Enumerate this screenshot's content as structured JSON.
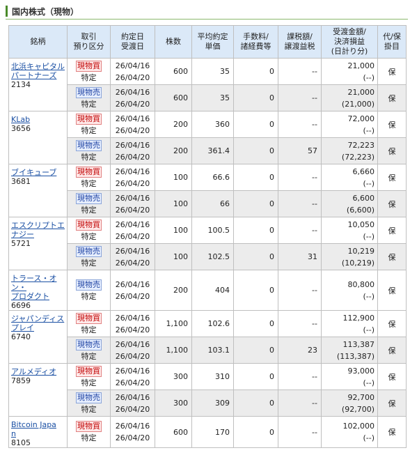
{
  "section_title": "国内株式（現物）",
  "headers": {
    "brand": "銘柄",
    "type": [
      "取引",
      "預り区分"
    ],
    "dates": [
      "約定日",
      "受渡日"
    ],
    "qty": "株数",
    "price": [
      "平均約定",
      "単価"
    ],
    "fee": [
      "手数料/",
      "諸経費等"
    ],
    "tax": [
      "課税額/",
      "譲渡益税"
    ],
    "amount": [
      "受渡金額/",
      "決済損益",
      "(日計り分)"
    ],
    "proxy": [
      "代/保",
      "掛目"
    ]
  },
  "groups": [
    {
      "name": "北浜キャピタルパートナーズ",
      "name_lines": [
        "北浜キャピタル",
        "パートナーズ"
      ],
      "code": "2134",
      "rows": [
        {
          "type": "現物買",
          "acct": "特定",
          "trade_date": "26/04/16",
          "settle_date": "26/04/20",
          "qty": "600",
          "price": "35",
          "fee": "0",
          "tax": "--",
          "amount": "21,000",
          "pl": "(--)",
          "proxy": "保"
        },
        {
          "type": "現物売",
          "acct": "特定",
          "trade_date": "26/04/16",
          "settle_date": "26/04/20",
          "qty": "600",
          "price": "35",
          "fee": "0",
          "tax": "--",
          "amount": "21,000",
          "pl": "(21,000)",
          "proxy": "保"
        }
      ]
    },
    {
      "name": "KLab",
      "name_lines": [
        "KLab"
      ],
      "code": "3656",
      "rows": [
        {
          "type": "現物買",
          "acct": "特定",
          "trade_date": "26/04/16",
          "settle_date": "26/04/20",
          "qty": "200",
          "price": "360",
          "fee": "0",
          "tax": "--",
          "amount": "72,000",
          "pl": "(--)",
          "proxy": "保"
        },
        {
          "type": "現物売",
          "acct": "特定",
          "trade_date": "26/04/16",
          "settle_date": "26/04/20",
          "qty": "200",
          "price": "361.4",
          "fee": "0",
          "tax": "57",
          "amount": "72,223",
          "pl": "(72,223)",
          "proxy": "保"
        }
      ]
    },
    {
      "name": "ブイキューブ",
      "name_lines": [
        "ブイキューブ"
      ],
      "code": "3681",
      "rows": [
        {
          "type": "現物買",
          "acct": "特定",
          "trade_date": "26/04/16",
          "settle_date": "26/04/20",
          "qty": "100",
          "price": "66.6",
          "fee": "0",
          "tax": "--",
          "amount": "6,660",
          "pl": "(--)",
          "proxy": "保"
        },
        {
          "type": "現物売",
          "acct": "特定",
          "trade_date": "26/04/16",
          "settle_date": "26/04/20",
          "qty": "100",
          "price": "66",
          "fee": "0",
          "tax": "--",
          "amount": "6,600",
          "pl": "(6,600)",
          "proxy": "保"
        }
      ]
    },
    {
      "name": "エスクリプトエナジー",
      "name_lines": [
        "エスクリプトエ",
        "ナジー"
      ],
      "code": "5721",
      "rows": [
        {
          "type": "現物買",
          "acct": "特定",
          "trade_date": "26/04/16",
          "settle_date": "26/04/20",
          "qty": "100",
          "price": "100.5",
          "fee": "0",
          "tax": "--",
          "amount": "10,050",
          "pl": "(--)",
          "proxy": "保"
        },
        {
          "type": "現物売",
          "acct": "特定",
          "trade_date": "26/04/16",
          "settle_date": "26/04/20",
          "qty": "100",
          "price": "102.5",
          "fee": "0",
          "tax": "31",
          "amount": "10,219",
          "pl": "(10,219)",
          "proxy": "保"
        }
      ]
    },
    {
      "name": "トラース・オン・プロダクト",
      "name_lines": [
        "トラース・オン・",
        "プロダクト"
      ],
      "code": "6696",
      "rows": [
        {
          "type": "現物売",
          "acct": "特定",
          "trade_date": "26/04/16",
          "settle_date": "26/04/20",
          "qty": "200",
          "price": "404",
          "fee": "0",
          "tax": "--",
          "amount": "80,800",
          "pl": "(--)",
          "proxy": "保"
        }
      ]
    },
    {
      "name": "ジャパンディスプレイ",
      "name_lines": [
        "ジャパンディス",
        "プレイ"
      ],
      "code": "6740",
      "rows": [
        {
          "type": "現物買",
          "acct": "特定",
          "trade_date": "26/04/16",
          "settle_date": "26/04/20",
          "qty": "1,100",
          "price": "102.6",
          "fee": "0",
          "tax": "--",
          "amount": "112,900",
          "pl": "(--)",
          "proxy": "保"
        },
        {
          "type": "現物売",
          "acct": "特定",
          "trade_date": "26/04/16",
          "settle_date": "26/04/20",
          "qty": "1,100",
          "price": "103.1",
          "fee": "0",
          "tax": "23",
          "amount": "113,387",
          "pl": "(113,387)",
          "proxy": "保"
        }
      ]
    },
    {
      "name": "アルメディオ",
      "name_lines": [
        "アルメディオ"
      ],
      "code": "7859",
      "rows": [
        {
          "type": "現物買",
          "acct": "特定",
          "trade_date": "26/04/16",
          "settle_date": "26/04/20",
          "qty": "300",
          "price": "310",
          "fee": "0",
          "tax": "--",
          "amount": "93,000",
          "pl": "(--)",
          "proxy": "保"
        },
        {
          "type": "現物売",
          "acct": "特定",
          "trade_date": "26/04/16",
          "settle_date": "26/04/20",
          "qty": "300",
          "price": "309",
          "fee": "0",
          "tax": "--",
          "amount": "92,700",
          "pl": "(92,700)",
          "proxy": "保"
        }
      ]
    },
    {
      "name": "Bitcoin Japan",
      "name_lines": [
        "Bitcoin Japa",
        "n"
      ],
      "code": "8105",
      "rows": [
        {
          "type": "現物買",
          "acct": "特定",
          "trade_date": "26/04/16",
          "settle_date": "26/04/20",
          "qty": "600",
          "price": "170",
          "fee": "0",
          "tax": "--",
          "amount": "102,000",
          "pl": "(--)",
          "proxy": "保"
        }
      ]
    }
  ]
}
